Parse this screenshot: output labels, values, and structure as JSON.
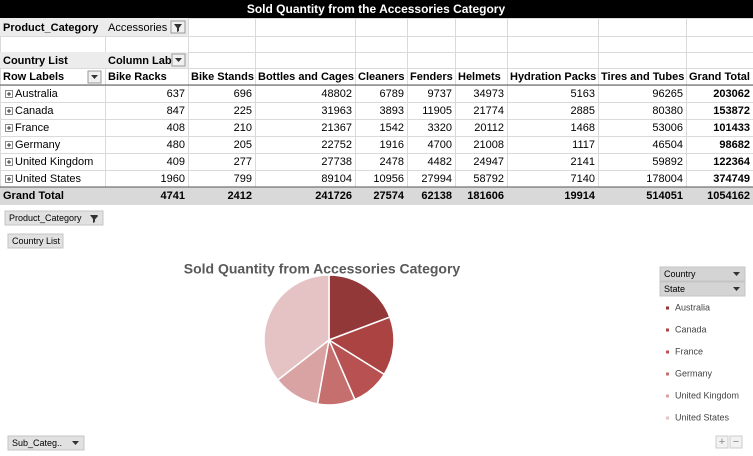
{
  "window_title": "Sold Quantity from the Accessories Category",
  "filter": {
    "field": "Product_Category",
    "value": "Accessories"
  },
  "pivot": {
    "rows_field": "Country List",
    "column_field": "Column Labe",
    "row_header": "Row Labels",
    "columns": [
      "Bike Racks",
      "Bike Stands",
      "Bottles and Cages",
      "Cleaners",
      "Fenders",
      "Helmets",
      "Hydration Packs",
      "Tires and Tubes",
      "Grand Total"
    ],
    "rows": [
      {
        "label": "Australia",
        "values": [
          637,
          696,
          48802,
          6789,
          9737,
          34973,
          5163,
          96265,
          203062
        ]
      },
      {
        "label": "Canada",
        "values": [
          847,
          225,
          31963,
          3893,
          11905,
          21774,
          2885,
          80380,
          153872
        ]
      },
      {
        "label": "France",
        "values": [
          408,
          210,
          21367,
          1542,
          3320,
          20112,
          1468,
          53006,
          101433
        ]
      },
      {
        "label": "Germany",
        "values": [
          480,
          205,
          22752,
          1916,
          4700,
          21008,
          1117,
          46504,
          98682
        ]
      },
      {
        "label": "United Kingdom",
        "values": [
          409,
          277,
          27738,
          2478,
          4482,
          24947,
          2141,
          59892,
          122364
        ]
      },
      {
        "label": "United States",
        "values": [
          1960,
          799,
          89104,
          10956,
          27994,
          58792,
          7140,
          178004,
          374749
        ]
      }
    ],
    "grand_total": {
      "label": "Grand Total",
      "values": [
        4741,
        2412,
        241726,
        27574,
        62138,
        181606,
        19914,
        514051,
        1054162
      ]
    }
  },
  "field_buttons": {
    "filter": "Product_Category",
    "axis": "Country List",
    "legend": [
      "Country",
      "State"
    ],
    "category": "Sub_Categ.."
  },
  "zoom_buttons": [
    "+",
    "−"
  ],
  "chart_data": {
    "type": "pie",
    "title": "Sold Quantity from Accessories Category",
    "categories": [
      "Australia",
      "Canada",
      "France",
      "Germany",
      "United Kingdom",
      "United States"
    ],
    "values": [
      203062,
      153872,
      101433,
      98682,
      122364,
      374749
    ],
    "colors": [
      "#933838",
      "#ab4343",
      "#b85252",
      "#c66f6f",
      "#d9a3a4",
      "#e5c3c5"
    ]
  }
}
